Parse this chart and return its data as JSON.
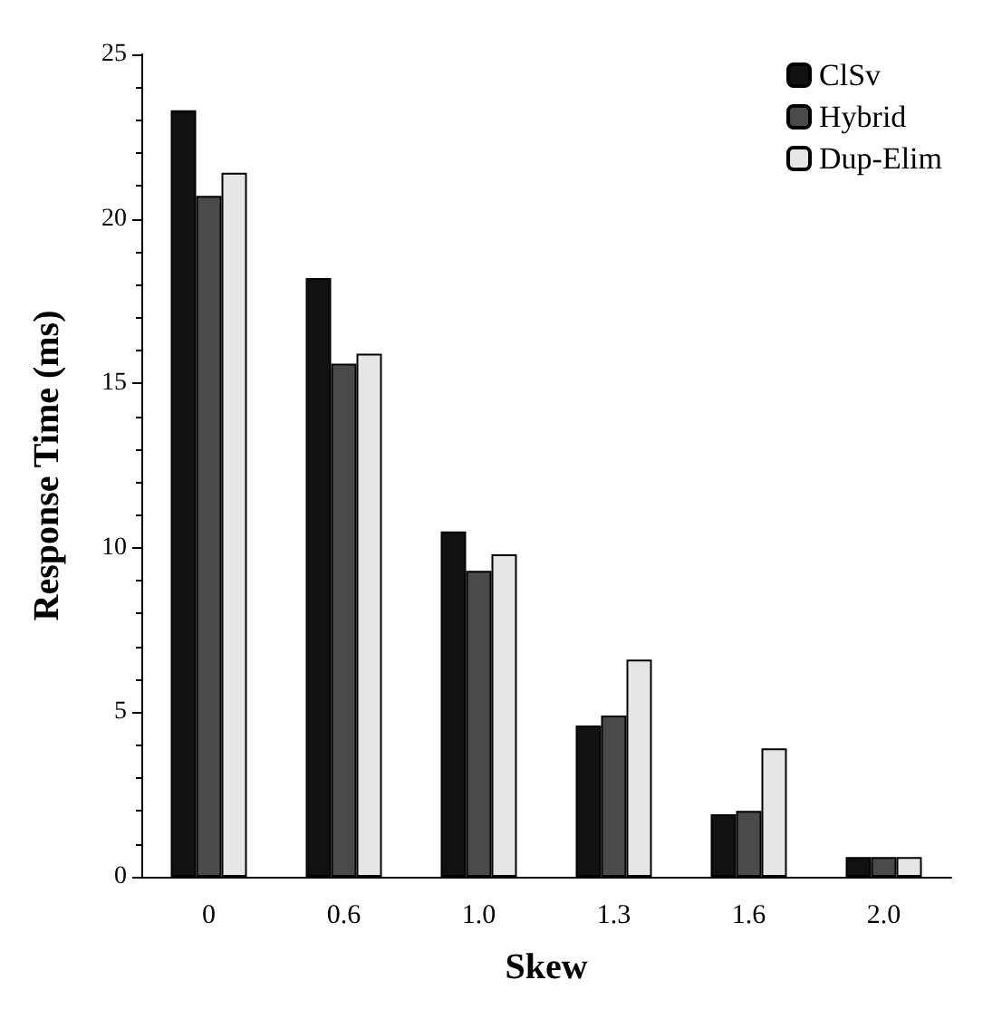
{
  "chart_data": {
    "type": "bar",
    "xlabel": "Skew",
    "ylabel": "Response Time (ms)",
    "categories": [
      "0",
      "0.6",
      "1.0",
      "1.3",
      "1.6",
      "2.0"
    ],
    "series": [
      {
        "name": "ClSv",
        "color": "#111111",
        "values": [
          23.3,
          18.2,
          10.5,
          4.6,
          1.9,
          0.6
        ]
      },
      {
        "name": "Hybrid",
        "color": "#4a4a4a",
        "values": [
          20.7,
          15.6,
          9.3,
          4.9,
          2.0,
          0.6
        ]
      },
      {
        "name": "Dup-Elim",
        "color": "#e6e6e6",
        "values": [
          21.4,
          15.9,
          9.8,
          6.6,
          3.9,
          0.6
        ]
      }
    ],
    "ylim": [
      0,
      25
    ],
    "yticks": [
      0,
      5,
      10,
      15,
      20,
      25
    ],
    "grid": false,
    "legend": "top right"
  }
}
